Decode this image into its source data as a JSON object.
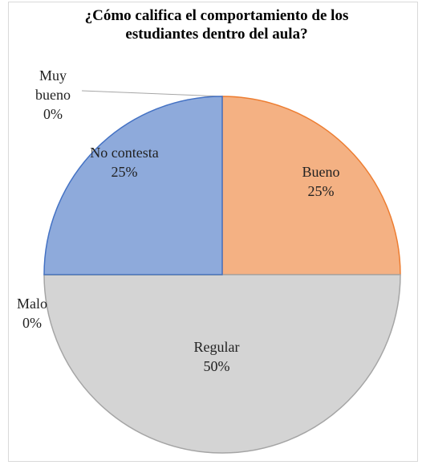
{
  "chart_data": {
    "type": "pie",
    "title": "¿Cómo califica el comportamiento de los estudiantes dentro del aula?",
    "categories": [
      "Muy bueno",
      "Bueno",
      "Regular",
      "Malo",
      "No contesta"
    ],
    "values": [
      0,
      25,
      50,
      0,
      25
    ],
    "value_labels": [
      "0%",
      "25%",
      "50%",
      "0%",
      "25%"
    ],
    "colors": [
      "#5b9bd5",
      "#f4b183",
      "#d4d4d4",
      "#ffc000",
      "#8eaadb"
    ],
    "stroke_colors": [
      "#5b9bd5",
      "#ed7d31",
      "#a5a5a5",
      "#ffc000",
      "#4472c4"
    ]
  }
}
